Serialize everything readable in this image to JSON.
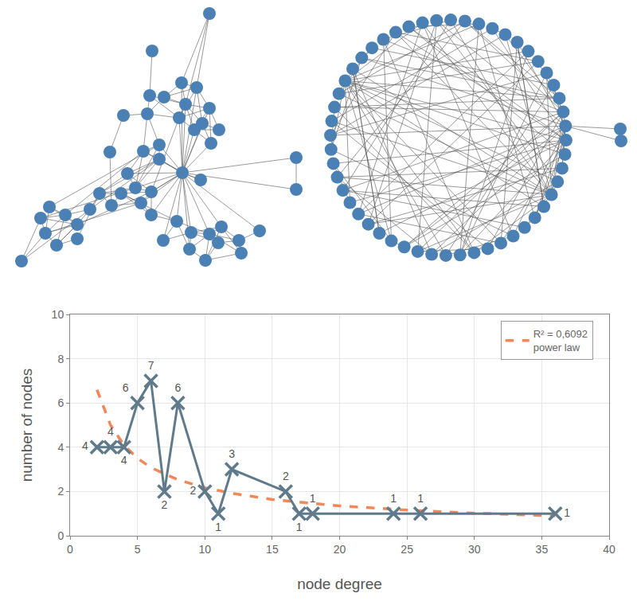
{
  "chart_data": {
    "type": "line",
    "x_label": "node degree",
    "y_label": "number of nodes",
    "xlim": [
      0,
      40
    ],
    "xticks": [
      0,
      5,
      10,
      15,
      20,
      25,
      30,
      35,
      40
    ],
    "ylim": [
      0,
      10
    ],
    "yticks": [
      0,
      2,
      4,
      6,
      8,
      10
    ],
    "grid": true,
    "legend": "upper right",
    "series": [
      {
        "color": "#5f7a8a",
        "marker": "x",
        "line_style": "solid",
        "data_labels": true,
        "x": [
          2,
          3,
          4,
          5,
          6,
          7,
          8,
          10,
          11,
          12,
          16,
          17,
          18,
          24,
          26,
          36
        ],
        "values": [
          4,
          4,
          4,
          6,
          7,
          2,
          6,
          2,
          1,
          3,
          2,
          1,
          1,
          1,
          1,
          1
        ]
      },
      {
        "name": "R² = 0,6092\npower law",
        "type": "line",
        "color": "#f4875a",
        "line_style": "dash",
        "x": [
          2,
          3,
          4,
          5,
          6,
          8,
          10,
          12,
          15,
          20,
          25,
          30,
          36
        ],
        "values": [
          6.6,
          5.0,
          4.1,
          3.5,
          3.08,
          2.53,
          2.17,
          1.92,
          1.64,
          1.35,
          1.16,
          1.02,
          0.9
        ]
      }
    ]
  }
}
